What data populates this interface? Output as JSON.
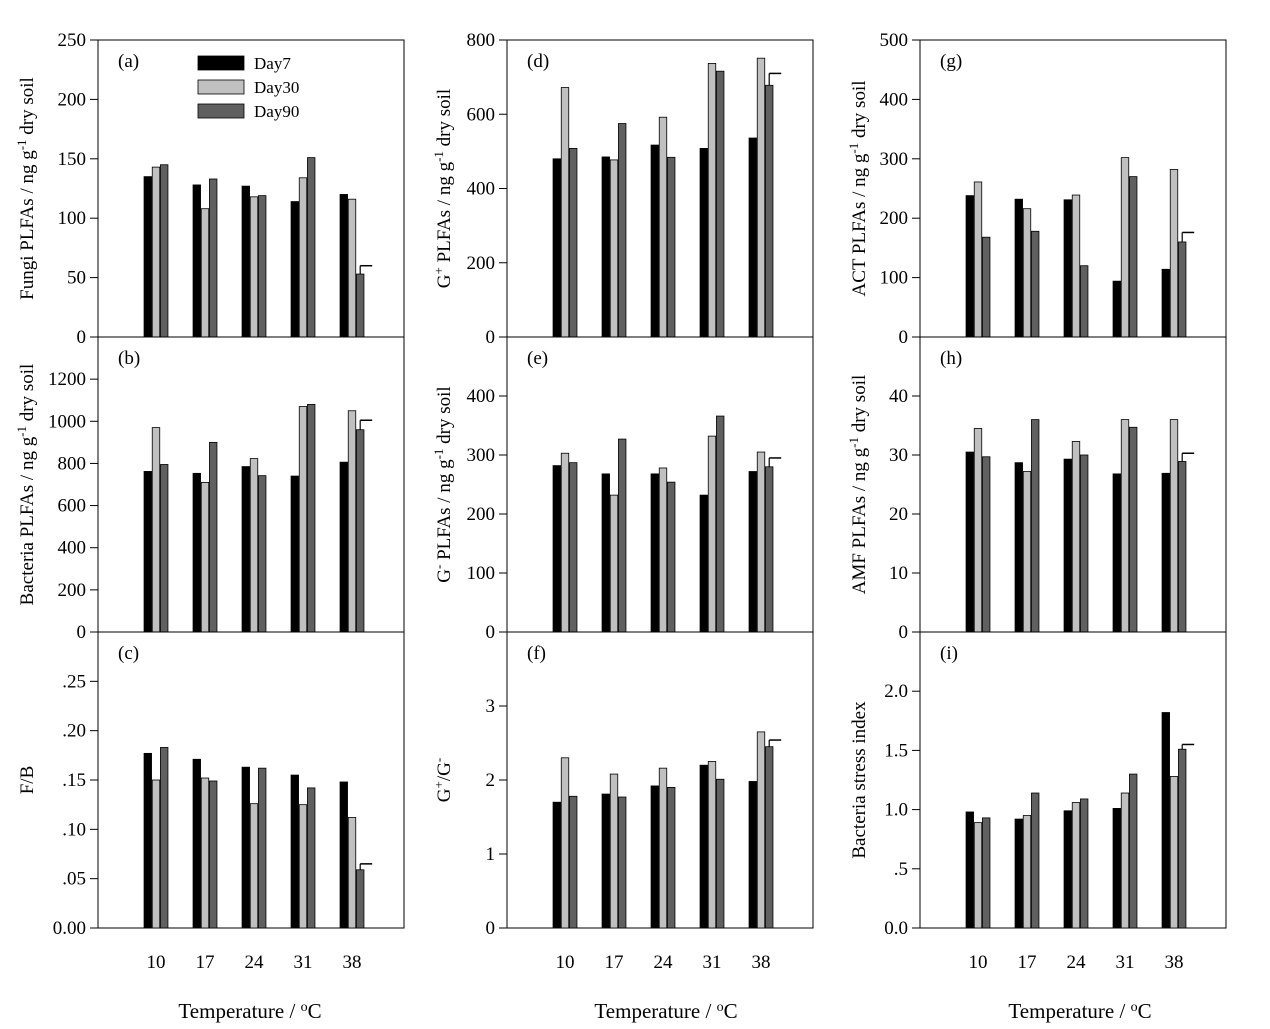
{
  "styles": {
    "day7": "#000000",
    "day30": "#c0c0c0",
    "day90": "#606060",
    "axis": "#000000"
  },
  "chart_data": {
    "type": "bar",
    "categories": [
      "10",
      "17",
      "24",
      "31",
      "38"
    ],
    "x_axis_label": "Temperature / °C",
    "legend": {
      "position": "top-left (panel a)",
      "entries": [
        "Day7",
        "Day30",
        "Day90"
      ]
    },
    "panels": [
      {
        "id": "a",
        "label": "(a)",
        "column": 0,
        "row": 0,
        "ylabel": "Fungi PLFAs / ng g⁻¹ dry soil",
        "ylim": [
          0,
          250
        ],
        "yticks": [
          0,
          50,
          100,
          150,
          200,
          250
        ],
        "ytick_labels": [
          "0",
          "50",
          "100",
          "150",
          "200",
          "250"
        ],
        "series": [
          {
            "name": "Day7",
            "values": [
              135,
              128,
              127,
              114,
              120
            ]
          },
          {
            "name": "Day30",
            "values": [
              143,
              108,
              118,
              134,
              116
            ]
          },
          {
            "name": "Day90",
            "values": [
              145,
              133,
              119,
              151,
              53
            ]
          }
        ],
        "error_bar": {
          "series": "Day90",
          "category": "38",
          "value": 7
        }
      },
      {
        "id": "b",
        "label": "(b)",
        "column": 0,
        "row": 1,
        "ylabel": "Bacteria PLFAs / ng g⁻¹ dry soil",
        "ylim": [
          0,
          1400
        ],
        "yticks": [
          0,
          200,
          400,
          600,
          800,
          1000,
          1200
        ],
        "ytick_labels": [
          "0",
          "200",
          "400",
          "600",
          "800",
          "1000",
          "1200"
        ],
        "series": [
          {
            "name": "Day7",
            "values": [
              762,
              753,
              785,
              740,
              806
            ]
          },
          {
            "name": "Day30",
            "values": [
              970,
              710,
              823,
              1070,
              1050
            ]
          },
          {
            "name": "Day90",
            "values": [
              795,
              900,
              742,
              1080,
              960
            ]
          }
        ],
        "error_bar": {
          "series": "Day90",
          "category": "38",
          "value": 45
        }
      },
      {
        "id": "c",
        "label": "(c)",
        "column": 0,
        "row": 2,
        "ylabel": "F/B",
        "ylim": [
          0,
          0.3
        ],
        "yticks": [
          0,
          0.05,
          0.1,
          0.15,
          0.2,
          0.25
        ],
        "ytick_labels": [
          "0.00",
          ".05",
          ".10",
          ".15",
          ".20",
          ".25"
        ],
        "series": [
          {
            "name": "Day7",
            "values": [
              0.177,
              0.171,
              0.163,
              0.155,
              0.148
            ]
          },
          {
            "name": "Day30",
            "values": [
              0.15,
              0.152,
              0.126,
              0.125,
              0.112
            ]
          },
          {
            "name": "Day90",
            "values": [
              0.183,
              0.149,
              0.162,
              0.142,
              0.059
            ]
          }
        ],
        "error_bar": {
          "series": "Day90",
          "category": "38",
          "value": 0.006
        }
      },
      {
        "id": "d",
        "label": "(d)",
        "column": 1,
        "row": 0,
        "ylabel": "G⁺ PLFAs / ng g⁻¹ dry soil",
        "ylim": [
          0,
          800
        ],
        "yticks": [
          0,
          200,
          400,
          600,
          800
        ],
        "ytick_labels": [
          "0",
          "200",
          "400",
          "600",
          "800"
        ],
        "series": [
          {
            "name": "Day7",
            "values": [
              480,
              485,
              517,
              508,
              536
            ]
          },
          {
            "name": "Day30",
            "values": [
              672,
              477,
              592,
              737,
              751
            ]
          },
          {
            "name": "Day90",
            "values": [
              508,
              575,
              484,
              716,
              678
            ]
          }
        ],
        "error_bar": {
          "series": "Day90",
          "category": "38",
          "value": 32
        }
      },
      {
        "id": "e",
        "label": "(e)",
        "column": 1,
        "row": 1,
        "ylabel": "G⁻ PLFAs / ng g⁻¹ dry soil",
        "ylim": [
          0,
          500
        ],
        "yticks": [
          0,
          100,
          200,
          300,
          400
        ],
        "ytick_labels": [
          "0",
          "100",
          "200",
          "300",
          "400"
        ],
        "series": [
          {
            "name": "Day7",
            "values": [
              282,
              268,
              268,
              232,
              272
            ]
          },
          {
            "name": "Day30",
            "values": [
              303,
              232,
              278,
              332,
              305
            ]
          },
          {
            "name": "Day90",
            "values": [
              287,
              327,
              254,
              366,
              280
            ]
          }
        ],
        "error_bar": {
          "series": "Day90",
          "category": "38",
          "value": 15
        }
      },
      {
        "id": "f",
        "label": "(f)",
        "column": 1,
        "row": 2,
        "ylabel": "G⁺/G⁻",
        "ylim": [
          0,
          4
        ],
        "yticks": [
          0,
          1,
          2,
          3
        ],
        "ytick_labels": [
          "0",
          "1",
          "2",
          "3"
        ],
        "series": [
          {
            "name": "Day7",
            "values": [
              1.7,
              1.81,
              1.92,
              2.2,
              1.98
            ]
          },
          {
            "name": "Day30",
            "values": [
              2.3,
              2.08,
              2.16,
              2.25,
              2.65
            ]
          },
          {
            "name": "Day90",
            "values": [
              1.78,
              1.77,
              1.9,
              2.01,
              2.45
            ]
          }
        ],
        "error_bar": {
          "series": "Day90",
          "category": "38",
          "value": 0.09
        }
      },
      {
        "id": "g",
        "label": "(g)",
        "column": 2,
        "row": 0,
        "ylabel": "ACT PLFAs / ng g⁻¹ dry soil",
        "ylim": [
          0,
          500
        ],
        "yticks": [
          0,
          100,
          200,
          300,
          400,
          500
        ],
        "ytick_labels": [
          "0",
          "100",
          "200",
          "300",
          "400",
          "500"
        ],
        "series": [
          {
            "name": "Day7",
            "values": [
              238,
              232,
              231,
              94,
              114
            ]
          },
          {
            "name": "Day30",
            "values": [
              261,
              216,
              239,
              302,
              282
            ]
          },
          {
            "name": "Day90",
            "values": [
              168,
              178,
              120,
              270,
              160
            ]
          }
        ],
        "error_bar": {
          "series": "Day90",
          "category": "38",
          "value": 16
        }
      },
      {
        "id": "h",
        "label": "(h)",
        "column": 2,
        "row": 1,
        "ylabel": "AMF PLFAs / ng g⁻¹ dry soil",
        "ylim": [
          0,
          50
        ],
        "yticks": [
          0,
          10,
          20,
          30,
          40
        ],
        "ytick_labels": [
          "0",
          "10",
          "20",
          "30",
          "40"
        ],
        "series": [
          {
            "name": "Day7",
            "values": [
              30.5,
              28.7,
              29.3,
              26.8,
              26.9
            ]
          },
          {
            "name": "Day30",
            "values": [
              34.5,
              27.2,
              32.3,
              36.0,
              36.0
            ]
          },
          {
            "name": "Day90",
            "values": [
              29.7,
              36.0,
              30.0,
              34.7,
              28.9
            ]
          }
        ],
        "error_bar": {
          "series": "Day90",
          "category": "38",
          "value": 1.4
        }
      },
      {
        "id": "i",
        "label": "(i)",
        "column": 2,
        "row": 2,
        "ylabel": "Bacteria stress index",
        "ylim": [
          0,
          2.5
        ],
        "yticks": [
          0,
          0.5,
          1.0,
          1.5,
          2.0
        ],
        "ytick_labels": [
          "0.0",
          ".5",
          "1.0",
          "1.5",
          "2.0"
        ],
        "series": [
          {
            "name": "Day7",
            "values": [
              0.98,
              0.92,
              0.99,
              1.01,
              1.82
            ]
          },
          {
            "name": "Day30",
            "values": [
              0.89,
              0.95,
              1.06,
              1.14,
              1.28
            ]
          },
          {
            "name": "Day90",
            "values": [
              0.93,
              1.14,
              1.09,
              1.3,
              1.51
            ]
          }
        ],
        "error_bar": {
          "series": "Day90",
          "category": "38",
          "value": 0.04
        }
      }
    ]
  }
}
